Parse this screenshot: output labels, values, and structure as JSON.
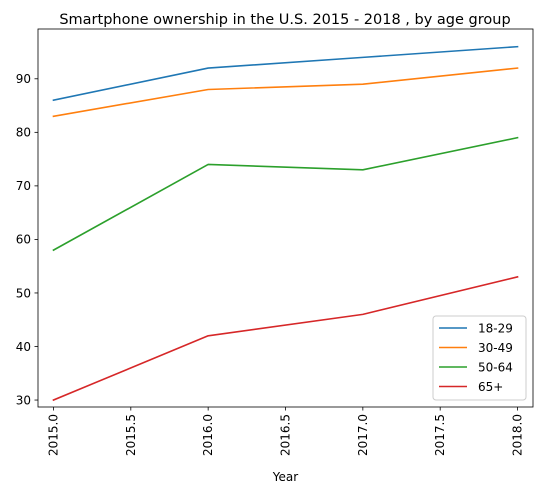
{
  "chart_data": {
    "type": "line",
    "title": "Smartphone ownership in the U.S. 2015 - 2018 , by age group",
    "xlabel": "Year",
    "ylabel": "",
    "x": [
      2015,
      2016,
      2017,
      2018
    ],
    "xlim": [
      2014.9,
      2018.1
    ],
    "ylim": [
      28.7,
      99.3
    ],
    "x_ticks": [
      2015.0,
      2015.5,
      2016.0,
      2016.5,
      2017.0,
      2017.5,
      2018.0
    ],
    "x_tick_labels": [
      "2015.0",
      "2015.5",
      "2016.0",
      "2016.5",
      "2017.0",
      "2017.5",
      "2018.0"
    ],
    "y_ticks": [
      30,
      40,
      50,
      60,
      70,
      80,
      90
    ],
    "y_tick_labels": [
      "30",
      "40",
      "50",
      "60",
      "70",
      "80",
      "90"
    ],
    "grid": false,
    "legend_position": "lower-right",
    "series": [
      {
        "name": "18-29",
        "color": "#1f77b4",
        "values": [
          86,
          92,
          94,
          96
        ]
      },
      {
        "name": "30-49",
        "color": "#ff7f0e",
        "values": [
          83,
          88,
          89,
          92
        ]
      },
      {
        "name": "50-64",
        "color": "#2ca02c",
        "values": [
          58,
          74,
          73,
          79
        ]
      },
      {
        "name": "65+",
        "color": "#d62728",
        "values": [
          30,
          42,
          46,
          53
        ]
      }
    ]
  }
}
